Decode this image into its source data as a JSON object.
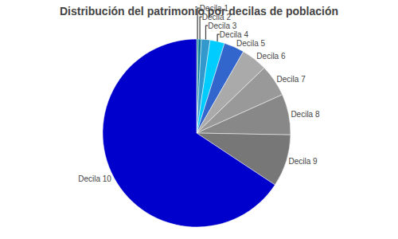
{
  "chart_data": {
    "type": "pie",
    "title": "Distribución del patrimonio por decilas de población",
    "categories": [
      "Decila 1",
      "Decila 2",
      "Decila 3",
      "Decila 4",
      "Decila 5",
      "Decila 6",
      "Decila 7",
      "Decila 8",
      "Decila 9",
      "Decila 10"
    ],
    "values": [
      0.3,
      0.5,
      1.5,
      2.5,
      3.5,
      4.5,
      5.5,
      7.0,
      9.0,
      65.7
    ],
    "colors": [
      "#008080",
      "#007799",
      "#3399CC",
      "#00CCFF",
      "#3366CC",
      "#AAAAAA",
      "#999999",
      "#888888",
      "#777777",
      "#0000CC"
    ]
  }
}
